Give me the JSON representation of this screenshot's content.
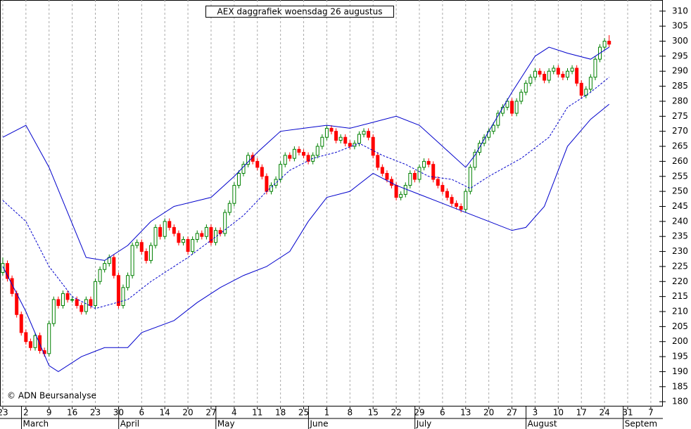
{
  "chart_data": {
    "type": "candlestick",
    "title": "AEX daggrafiek woensdag 26 augustus",
    "copyright": "© ADN Beursanalyse",
    "up_color": "#008000",
    "down_color": "#ff0000",
    "ohlc": [
      [
        223,
        228,
        222,
        226
      ],
      [
        226,
        227,
        220,
        221
      ],
      [
        221,
        222,
        215,
        216
      ],
      [
        216,
        217,
        208,
        209
      ],
      [
        209,
        210,
        202,
        203
      ],
      [
        203,
        204,
        199,
        200
      ],
      [
        200,
        201,
        197,
        198
      ],
      [
        198,
        203,
        197,
        202
      ],
      [
        202,
        203,
        196,
        197
      ],
      [
        197,
        198,
        195,
        196
      ],
      [
        196,
        207,
        195,
        206
      ],
      [
        206,
        215,
        205,
        214
      ],
      [
        214,
        215,
        211,
        212
      ],
      [
        212,
        217,
        211,
        216
      ],
      [
        216,
        217,
        213,
        214
      ],
      [
        214,
        215,
        213,
        214
      ],
      [
        214,
        215,
        211,
        212
      ],
      [
        212,
        213,
        209,
        210
      ],
      [
        210,
        215,
        209,
        214
      ],
      [
        214,
        215,
        211,
        212
      ],
      [
        212,
        221,
        211,
        220
      ],
      [
        220,
        225,
        219,
        224
      ],
      [
        224,
        227,
        223,
        226
      ],
      [
        226,
        229,
        225,
        228
      ],
      [
        228,
        229,
        221,
        222
      ],
      [
        222,
        223,
        211,
        212
      ],
      [
        212,
        219,
        211,
        218
      ],
      [
        218,
        223,
        217,
        222
      ],
      [
        222,
        233,
        221,
        232
      ],
      [
        232,
        234,
        231,
        233
      ],
      [
        233,
        234,
        229,
        230
      ],
      [
        230,
        231,
        226,
        227
      ],
      [
        227,
        233,
        226,
        232
      ],
      [
        232,
        239,
        231,
        238
      ],
      [
        238,
        239,
        234,
        235
      ],
      [
        235,
        241,
        234,
        240
      ],
      [
        240,
        241,
        237,
        238
      ],
      [
        238,
        239,
        235,
        236
      ],
      [
        236,
        237,
        232,
        233
      ],
      [
        233,
        235,
        232,
        234
      ],
      [
        234,
        235,
        229,
        230
      ],
      [
        230,
        235,
        229,
        234
      ],
      [
        234,
        237,
        233,
        236
      ],
      [
        236,
        237,
        234,
        235
      ],
      [
        235,
        239,
        234,
        238
      ],
      [
        238,
        239,
        232,
        233
      ],
      [
        233,
        238,
        232,
        237
      ],
      [
        237,
        238,
        235,
        236
      ],
      [
        236,
        244,
        235,
        243
      ],
      [
        243,
        247,
        242,
        246
      ],
      [
        246,
        253,
        245,
        252
      ],
      [
        252,
        257,
        251,
        256
      ],
      [
        256,
        260,
        255,
        259
      ],
      [
        259,
        263,
        258,
        262
      ],
      [
        262,
        263,
        259,
        260
      ],
      [
        260,
        261,
        257,
        258
      ],
      [
        258,
        259,
        254,
        255
      ],
      [
        255,
        256,
        249,
        250
      ],
      [
        250,
        253,
        249,
        252
      ],
      [
        252,
        255,
        251,
        254
      ],
      [
        254,
        260,
        253,
        259
      ],
      [
        259,
        263,
        258,
        262
      ],
      [
        262,
        263,
        260,
        261
      ],
      [
        261,
        265,
        260,
        264
      ],
      [
        264,
        265,
        262,
        263
      ],
      [
        263,
        264,
        261,
        262
      ],
      [
        262,
        263,
        259,
        260
      ],
      [
        260,
        263,
        259,
        262
      ],
      [
        262,
        266,
        261,
        265
      ],
      [
        265,
        269,
        264,
        268
      ],
      [
        268,
        272,
        267,
        271
      ],
      [
        271,
        272,
        269,
        270
      ],
      [
        270,
        271,
        266,
        267
      ],
      [
        267,
        269,
        266,
        268
      ],
      [
        268,
        269,
        265,
        266
      ],
      [
        266,
        267,
        264,
        265
      ],
      [
        265,
        267,
        264,
        266
      ],
      [
        266,
        270,
        265,
        269
      ],
      [
        269,
        271,
        268,
        270
      ],
      [
        270,
        271,
        267,
        268
      ],
      [
        268,
        269,
        261,
        262
      ],
      [
        262,
        263,
        257,
        258
      ],
      [
        258,
        259,
        255,
        256
      ],
      [
        256,
        257,
        253,
        254
      ],
      [
        254,
        255,
        251,
        252
      ],
      [
        252,
        253,
        247,
        248
      ],
      [
        248,
        250,
        247,
        249
      ],
      [
        249,
        253,
        248,
        252
      ],
      [
        252,
        257,
        251,
        256
      ],
      [
        256,
        257,
        253,
        254
      ],
      [
        254,
        259,
        253,
        258
      ],
      [
        258,
        261,
        257,
        260
      ],
      [
        260,
        261,
        258,
        259
      ],
      [
        259,
        260,
        253,
        254
      ],
      [
        254,
        255,
        251,
        252
      ],
      [
        252,
        253,
        249,
        250
      ],
      [
        250,
        251,
        247,
        248
      ],
      [
        248,
        249,
        245,
        246
      ],
      [
        246,
        247,
        244,
        245
      ],
      [
        245,
        246,
        243,
        244
      ],
      [
        244,
        251,
        243,
        250
      ],
      [
        250,
        259,
        249,
        258
      ],
      [
        258,
        264,
        257,
        263
      ],
      [
        263,
        267,
        262,
        266
      ],
      [
        266,
        269,
        265,
        268
      ],
      [
        268,
        271,
        267,
        270
      ],
      [
        270,
        273,
        269,
        272
      ],
      [
        272,
        277,
        271,
        276
      ],
      [
        276,
        279,
        275,
        278
      ],
      [
        278,
        281,
        277,
        280
      ],
      [
        280,
        281,
        275,
        276
      ],
      [
        276,
        281,
        275,
        280
      ],
      [
        280,
        284,
        279,
        283
      ],
      [
        283,
        287,
        282,
        286
      ],
      [
        286,
        289,
        285,
        288
      ],
      [
        288,
        291,
        287,
        290
      ],
      [
        290,
        291,
        288,
        289
      ],
      [
        289,
        290,
        286,
        287
      ],
      [
        287,
        291,
        286,
        290
      ],
      [
        290,
        292,
        289,
        291
      ],
      [
        291,
        292,
        288,
        289
      ],
      [
        289,
        290,
        287,
        288
      ],
      [
        288,
        291,
        287,
        290
      ],
      [
        290,
        292,
        289,
        291
      ],
      [
        291,
        292,
        285,
        286
      ],
      [
        286,
        287,
        281,
        282
      ],
      [
        282,
        285,
        281,
        284
      ],
      [
        284,
        289,
        283,
        288
      ],
      [
        288,
        295,
        287,
        294
      ],
      [
        294,
        299,
        293,
        298
      ],
      [
        298,
        301,
        297,
        300
      ],
      [
        300,
        302,
        298,
        299
      ]
    ],
    "bands": [
      {
        "color": "#0000cc",
        "dashed": false,
        "x": [
          0,
          5,
          10,
          18,
          22,
          27,
          32,
          37,
          45,
          50,
          55,
          60,
          65,
          70,
          75,
          80,
          85,
          90,
          95,
          100,
          102,
          105,
          110,
          115,
          118,
          122,
          127,
          131
        ],
        "values": [
          268,
          272,
          258,
          228,
          227,
          232,
          240,
          245,
          248,
          255,
          263,
          270,
          271,
          272,
          271,
          273,
          275,
          272,
          265,
          258,
          262,
          270,
          283,
          295,
          298,
          296,
          294,
          298
        ]
      },
      {
        "color": "#0000cc",
        "dashed": true,
        "x": [
          0,
          5,
          10,
          15,
          20,
          27,
          32,
          40,
          47,
          52,
          57,
          62,
          67,
          72,
          77,
          82,
          87,
          92,
          97,
          101,
          105,
          112,
          118,
          122,
          127,
          131
        ],
        "values": [
          247,
          240,
          225,
          215,
          211,
          214,
          220,
          228,
          236,
          242,
          250,
          257,
          261,
          263,
          266,
          262,
          259,
          255,
          254,
          251,
          255,
          261,
          268,
          278,
          283,
          288
        ]
      },
      {
        "color": "#0000cc",
        "dashed": false,
        "x": [
          0,
          5,
          10,
          12,
          17,
          22,
          27,
          30,
          37,
          42,
          47,
          52,
          57,
          62,
          66,
          70,
          75,
          80,
          85,
          90,
          95,
          100,
          105,
          110,
          113,
          117,
          122,
          127,
          131
        ],
        "values": [
          225,
          210,
          192,
          190,
          195,
          198,
          198,
          203,
          207,
          213,
          218,
          222,
          225,
          230,
          240,
          248,
          250,
          256,
          252,
          249,
          246,
          243,
          240,
          237,
          238,
          245,
          265,
          274,
          279
        ]
      }
    ],
    "xlim": [
      -0.6,
      142.6
    ],
    "xticks": [
      {
        "value": 0,
        "label": "23"
      },
      {
        "value": 5,
        "label": "2"
      },
      {
        "value": 10,
        "label": "9"
      },
      {
        "value": 15,
        "label": "16"
      },
      {
        "value": 20,
        "label": "23"
      },
      {
        "value": 25,
        "label": "30"
      },
      {
        "value": 30,
        "label": "6"
      },
      {
        "value": 35,
        "label": "14"
      },
      {
        "value": 40,
        "label": "20"
      },
      {
        "value": 45,
        "label": "27"
      },
      {
        "value": 50,
        "label": "4"
      },
      {
        "value": 55,
        "label": "11"
      },
      {
        "value": 60,
        "label": "18"
      },
      {
        "value": 65,
        "label": "25"
      },
      {
        "value": 70,
        "label": "1"
      },
      {
        "value": 75,
        "label": "8"
      },
      {
        "value": 80,
        "label": "15"
      },
      {
        "value": 85,
        "label": "22"
      },
      {
        "value": 90,
        "label": "29"
      },
      {
        "value": 95,
        "label": "6"
      },
      {
        "value": 100,
        "label": "13"
      },
      {
        "value": 105,
        "label": "20"
      },
      {
        "value": 110,
        "label": "27"
      },
      {
        "value": 115,
        "label": "3"
      },
      {
        "value": 120,
        "label": "10"
      },
      {
        "value": 125,
        "label": "17"
      },
      {
        "value": 130,
        "label": "24"
      },
      {
        "value": 135,
        "label": "31"
      },
      {
        "value": 140,
        "label": "7"
      }
    ],
    "months": [
      {
        "value": 4.5,
        "label": "March"
      },
      {
        "value": 25.5,
        "label": "April"
      },
      {
        "value": 46.5,
        "label": "May"
      },
      {
        "value": 66.5,
        "label": "June"
      },
      {
        "value": 89.5,
        "label": "July"
      },
      {
        "value": 113.5,
        "label": "August"
      },
      {
        "value": 134.5,
        "label": "Septem"
      }
    ],
    "ylim": [
      178.4,
      313.7
    ],
    "yticks": [
      180,
      185,
      190,
      195,
      200,
      205,
      210,
      215,
      220,
      225,
      230,
      235,
      240,
      245,
      250,
      255,
      260,
      265,
      270,
      275,
      280,
      285,
      290,
      295,
      300,
      305,
      310
    ],
    "grid": true
  }
}
